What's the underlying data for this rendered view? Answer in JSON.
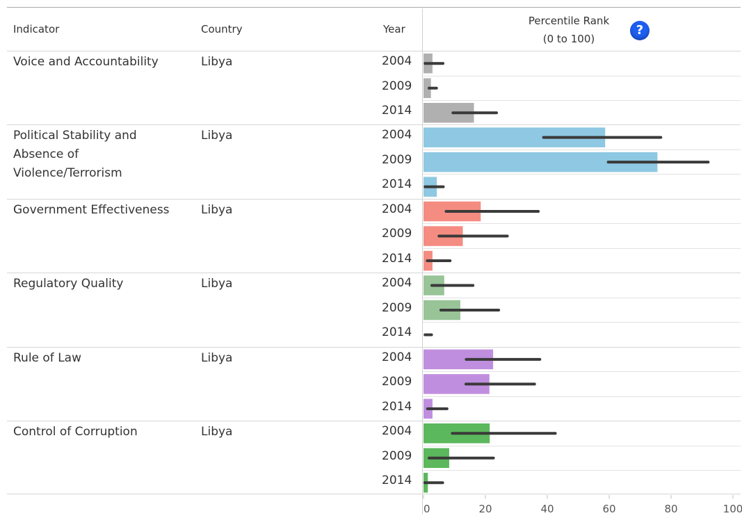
{
  "headers": {
    "indicator": "Indicator",
    "country": "Country",
    "year": "Year",
    "rank_line1": "Percentile Rank",
    "rank_line2": "(0 to 100)",
    "help": "?"
  },
  "chart_data": {
    "type": "bar",
    "orientation": "horizontal",
    "xlim": [
      0,
      100
    ],
    "xticks": [
      "0",
      "20",
      "40",
      "60",
      "80",
      "100"
    ],
    "groups": [
      {
        "indicator": "Voice and Accountability",
        "country": "Libya",
        "color": "#b0b0b0",
        "rows": [
          {
            "year": "2004",
            "value": 2.9,
            "lower": 0.5,
            "upper": 6.3
          },
          {
            "year": "2009",
            "value": 2.4,
            "lower": 1.8,
            "upper": 4.2
          },
          {
            "year": "2014",
            "value": 16.3,
            "lower": 9.5,
            "upper": 23.6
          }
        ]
      },
      {
        "indicator": "Political Stability and Absence of Violence/Terrorism",
        "country": "Libya",
        "color": "#8ec8e2",
        "rows": [
          {
            "year": "2004",
            "value": 58.7,
            "lower": 38.8,
            "upper": 76.7
          },
          {
            "year": "2009",
            "value": 75.6,
            "lower": 59.7,
            "upper": 92.0
          },
          {
            "year": "2014",
            "value": 4.3,
            "lower": 0.5,
            "upper": 6.4
          }
        ]
      },
      {
        "indicator": "Government Effectiveness",
        "country": "Libya",
        "color": "#f48c82",
        "rows": [
          {
            "year": "2004",
            "value": 18.5,
            "lower": 7.3,
            "upper": 37.1
          },
          {
            "year": "2009",
            "value": 12.7,
            "lower": 5.0,
            "upper": 27.1
          },
          {
            "year": "2014",
            "value": 2.9,
            "lower": 1.2,
            "upper": 8.6
          }
        ]
      },
      {
        "indicator": "Regulatory Quality",
        "country": "Libya",
        "color": "#98c497",
        "rows": [
          {
            "year": "2004",
            "value": 6.7,
            "lower": 2.7,
            "upper": 16.0
          },
          {
            "year": "2009",
            "value": 11.9,
            "lower": 5.6,
            "upper": 24.3
          },
          {
            "year": "2014",
            "value": 0.0,
            "lower": 0.5,
            "upper": 2.6
          }
        ]
      },
      {
        "indicator": "Rule of Law",
        "country": "Libya",
        "color": "#c08edf",
        "rows": [
          {
            "year": "2004",
            "value": 22.5,
            "lower": 13.8,
            "upper": 37.6
          },
          {
            "year": "2009",
            "value": 21.3,
            "lower": 13.7,
            "upper": 35.9
          },
          {
            "year": "2014",
            "value": 2.9,
            "lower": 1.3,
            "upper": 7.6
          }
        ]
      },
      {
        "indicator": "Control of Corruption",
        "country": "Libya",
        "color": "#5cb85c",
        "rows": [
          {
            "year": "2004",
            "value": 21.4,
            "lower": 9.3,
            "upper": 42.6
          },
          {
            "year": "2009",
            "value": 8.3,
            "lower": 1.8,
            "upper": 22.6
          },
          {
            "year": "2014",
            "value": 1.4,
            "lower": 0.4,
            "upper": 6.2
          }
        ]
      }
    ]
  }
}
